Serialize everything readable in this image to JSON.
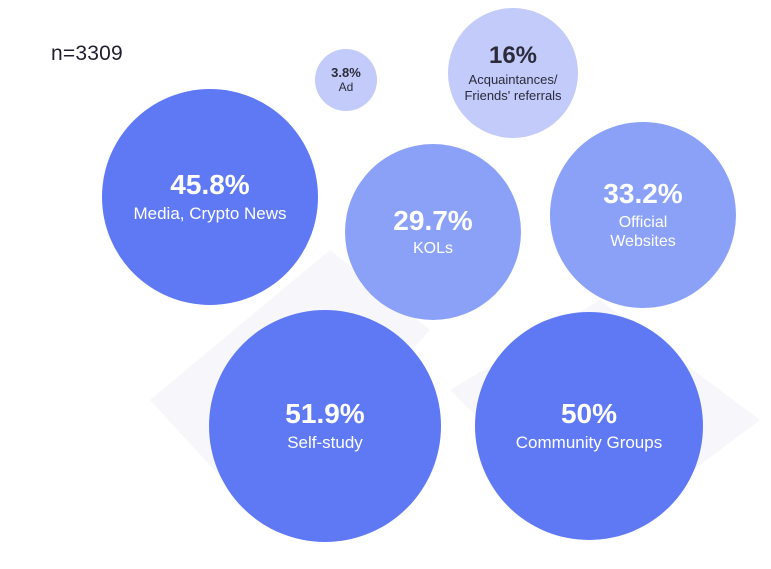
{
  "sample_size_label": "n=3309",
  "colors": {
    "dark": "#5f79f5",
    "medium": "#8aa1f7",
    "light": "#c2cbf9",
    "light_text": "#2b2b3a",
    "dark_text": "#ffffff",
    "background_shape": "#f7f7fb"
  },
  "chart_data": {
    "type": "bubble",
    "title": "",
    "unit": "%",
    "items": [
      {
        "label": "Media, Crypto News",
        "value": 45.8,
        "value_text": "45.8%",
        "tone": "dark"
      },
      {
        "label": "Ad",
        "value": 3.8,
        "value_text": "3.8%",
        "tone": "light"
      },
      {
        "label": "Acquaintances/ Friends' referrals",
        "label_lines": [
          "Acquaintances/",
          "Friends' referrals"
        ],
        "value": 16,
        "value_text": "16%",
        "tone": "light"
      },
      {
        "label": "KOLs",
        "value": 29.7,
        "value_text": "29.7%",
        "tone": "medium"
      },
      {
        "label": "Official Websites",
        "label_lines": [
          "Official",
          "Websites"
        ],
        "value": 33.2,
        "value_text": "33.2%",
        "tone": "medium"
      },
      {
        "label": "Self-study",
        "value": 51.9,
        "value_text": "51.9%",
        "tone": "dark"
      },
      {
        "label": "Community Groups",
        "value": 50,
        "value_text": "50%",
        "tone": "dark"
      }
    ]
  }
}
